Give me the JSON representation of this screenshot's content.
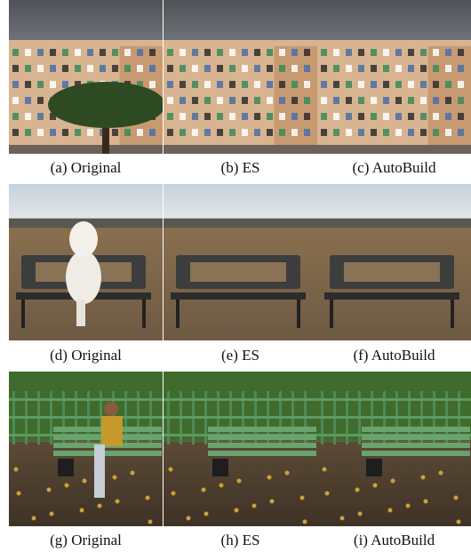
{
  "figure": {
    "panels": [
      {
        "caption": "(a) Original"
      },
      {
        "caption": "(b) ES"
      },
      {
        "caption": "(c) AutoBuild"
      },
      {
        "caption": "(d) Original"
      },
      {
        "caption": "(e) ES"
      },
      {
        "caption": "(f) AutoBuild"
      },
      {
        "caption": "(g) Original"
      },
      {
        "caption": "(h) ES"
      },
      {
        "caption": "(i) AutoBuild"
      }
    ]
  }
}
